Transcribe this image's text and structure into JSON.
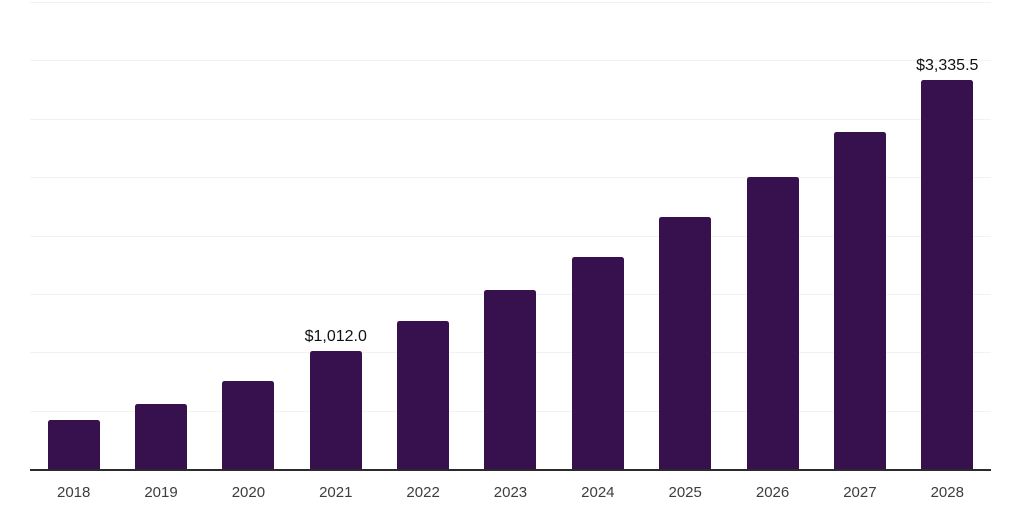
{
  "chart_data": {
    "type": "bar",
    "title": "",
    "xlabel": "",
    "ylabel": "",
    "categories": [
      "2018",
      "2019",
      "2020",
      "2021",
      "2022",
      "2023",
      "2024",
      "2025",
      "2026",
      "2027",
      "2028"
    ],
    "values": [
      420,
      555,
      750,
      1012.0,
      1270,
      1530,
      1820,
      2155,
      2505,
      2890,
      3335.5
    ],
    "point_labels": [
      "",
      "",
      "",
      "$1,012.0",
      "",
      "",
      "",
      "",
      "",
      "",
      "$3,335.5"
    ],
    "y_axis": {
      "min": 0,
      "max": 4000,
      "gridline_step": 500,
      "tick_labels_visible": false
    },
    "grid": true,
    "legend": "none",
    "colors": {
      "bar": "#36114d",
      "gridline": "#f2f2f2",
      "axis_line": "#2b2b2b",
      "tick_label": "#3d3d3d",
      "data_label": "#111111",
      "background": "#ffffff"
    }
  }
}
